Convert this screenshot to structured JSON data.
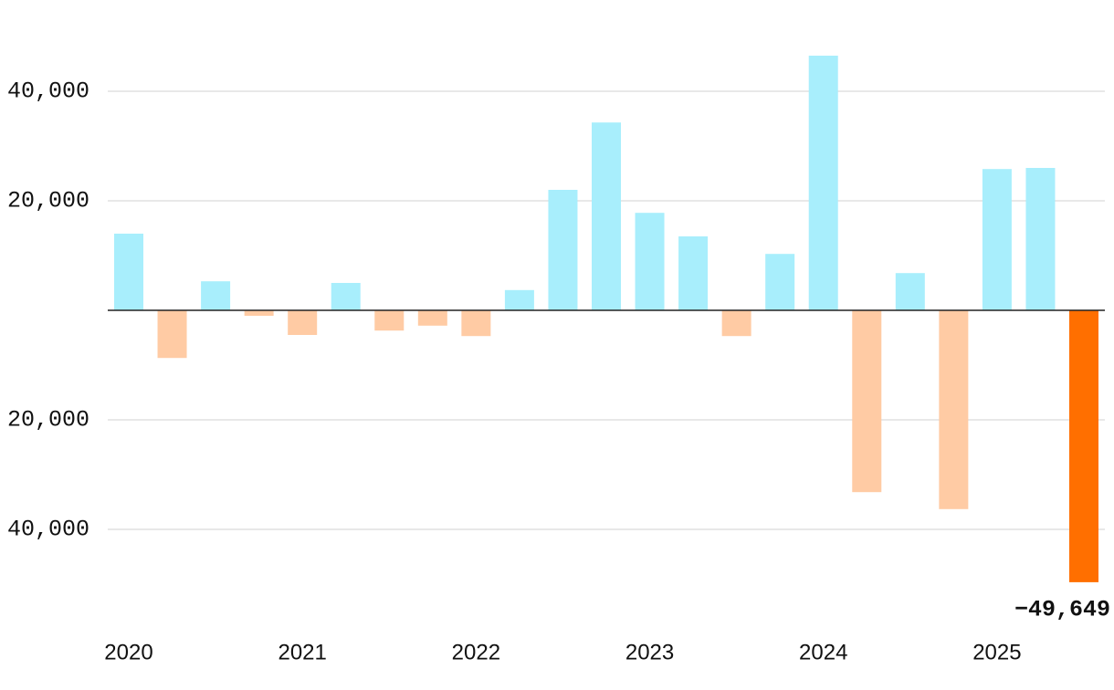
{
  "chart_data": {
    "type": "bar",
    "categories": [
      "2020",
      null,
      null,
      null,
      "2021",
      null,
      null,
      null,
      "2022",
      null,
      null,
      null,
      "2023",
      null,
      null,
      null,
      "2024",
      null,
      null,
      null,
      "2025",
      null,
      null
    ],
    "values": [
      14000,
      -8700,
      5300,
      -1000,
      -4500,
      5000,
      -3700,
      -2800,
      -4700,
      3700,
      22000,
      34300,
      17800,
      13500,
      -4700,
      10300,
      46500,
      -33200,
      6800,
      -36300,
      25800,
      26000,
      -49649
    ],
    "value_labels": [
      null,
      null,
      null,
      null,
      null,
      null,
      null,
      null,
      null,
      null,
      null,
      null,
      null,
      null,
      null,
      null,
      null,
      null,
      null,
      null,
      null,
      null,
      "−49,649"
    ],
    "colors": [
      "#a8eefc",
      "#ffcba4",
      "#a8eefc",
      "#ffcba4",
      "#ffcba4",
      "#a8eefc",
      "#ffcba4",
      "#ffcba4",
      "#ffcba4",
      "#a8eefc",
      "#a8eefc",
      "#a8eefc",
      "#a8eefc",
      "#a8eefc",
      "#ffcba4",
      "#a8eefc",
      "#a8eefc",
      "#ffcba4",
      "#a8eefc",
      "#ffcba4",
      "#a8eefc",
      "#a8eefc",
      "#ff6f00"
    ],
    "ylim": [
      -55000,
      50000
    ],
    "yticks": [
      {
        "value": -40000,
        "label": "40,000"
      },
      {
        "value": -20000,
        "label": "20,000"
      },
      {
        "value": 20000,
        "label": "20,000"
      },
      {
        "value": 40000,
        "label": "40,000"
      }
    ],
    "grid": true
  }
}
